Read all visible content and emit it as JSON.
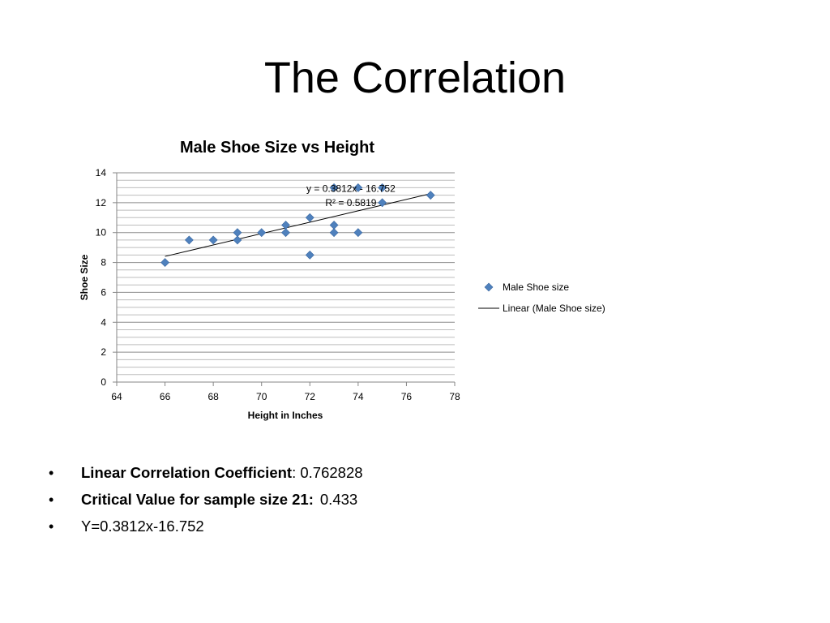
{
  "slide": {
    "title": "The Correlation"
  },
  "bullets": [
    {
      "label": "Linear Correlation Coefficient",
      "separator": ":",
      "value": " 0.762828"
    },
    {
      "label": "Critical Value for sample size 21:",
      "separator": "",
      "value": "0.433"
    },
    {
      "label": "",
      "separator": "",
      "value": "Y=0.3812x-16.752"
    }
  ],
  "bullet_symbol": "•",
  "chart_data": {
    "type": "scatter",
    "title": "Male Shoe Size vs Height",
    "xlabel": "Height in Inches",
    "ylabel": "Shoe Size",
    "xlim": [
      64,
      78
    ],
    "ylim": [
      0,
      14
    ],
    "xticks": [
      64,
      66,
      68,
      70,
      72,
      74,
      76,
      78
    ],
    "yticks": [
      0,
      2,
      4,
      6,
      8,
      10,
      12,
      14
    ],
    "grid": true,
    "legend_position": "right",
    "series": [
      {
        "name": "Male Shoe size",
        "marker": "diamond",
        "color": "#4F81BD",
        "points": [
          [
            66,
            8
          ],
          [
            67,
            9.5
          ],
          [
            68,
            9.5
          ],
          [
            69,
            10
          ],
          [
            69,
            9.5
          ],
          [
            70,
            10
          ],
          [
            71,
            10.5
          ],
          [
            71,
            10
          ],
          [
            72,
            11
          ],
          [
            72,
            8.5
          ],
          [
            73,
            13
          ],
          [
            73,
            10.5
          ],
          [
            73,
            10
          ],
          [
            74,
            13
          ],
          [
            74,
            10
          ],
          [
            75,
            13
          ],
          [
            75,
            12
          ],
          [
            77,
            12.5
          ]
        ]
      }
    ],
    "trendline": {
      "name": "Linear (Male Shoe size)",
      "type": "linear",
      "slope": 0.3812,
      "intercept": -16.752,
      "x_range": [
        66,
        77
      ],
      "color": "#000000",
      "equation_label": "y = 0.3812x - 16.752",
      "r2_label": "R² = 0.5819"
    }
  }
}
